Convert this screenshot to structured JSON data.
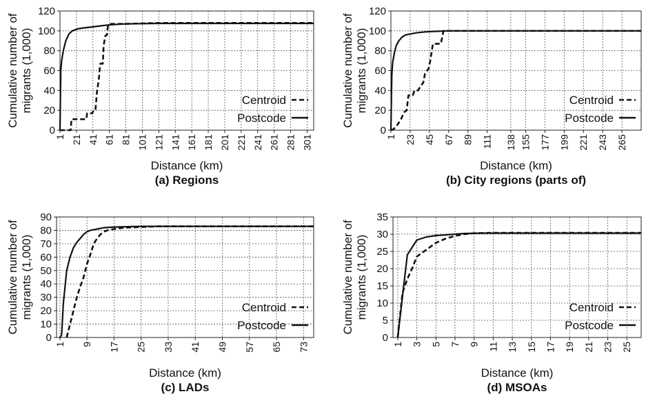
{
  "chart_data": [
    {
      "type": "line",
      "caption": "(a) Regions",
      "xlabel": "Distance (km)",
      "ylabel_lines": [
        "Cumulative number of",
        "migrants (1,000)"
      ],
      "xlim": [
        1,
        309
      ],
      "ylim": [
        0,
        120
      ],
      "y_ticks": [
        0,
        20,
        40,
        60,
        80,
        100,
        120
      ],
      "x_ticks": [
        1,
        21,
        41,
        61,
        81,
        101,
        121,
        141,
        161,
        181,
        201,
        221,
        241,
        261,
        281,
        301
      ],
      "grid": true,
      "legend_position": "bottom-right",
      "series": [
        {
          "name": "Centroid",
          "style": "dashed",
          "points": [
            [
              1,
              0
            ],
            [
              14,
              0
            ],
            [
              15,
              11
            ],
            [
              33,
              11
            ],
            [
              34,
              17
            ],
            [
              40,
              17
            ],
            [
              42,
              20
            ],
            [
              44,
              20
            ],
            [
              46,
              40
            ],
            [
              48,
              50
            ],
            [
              49,
              60
            ],
            [
              50,
              67
            ],
            [
              53,
              67
            ],
            [
              54,
              85
            ],
            [
              56,
              95
            ],
            [
              58,
              96
            ],
            [
              59,
              104
            ],
            [
              61,
              107
            ],
            [
              70,
              107
            ],
            [
              80,
              107
            ],
            [
              120,
              108
            ],
            [
              309,
              108
            ]
          ]
        },
        {
          "name": "Postcode",
          "style": "solid",
          "points": [
            [
              1,
              0
            ],
            [
              2,
              60
            ],
            [
              3,
              70
            ],
            [
              5,
              80
            ],
            [
              8,
              90
            ],
            [
              12,
              97
            ],
            [
              16,
              100
            ],
            [
              22,
              102
            ],
            [
              30,
              103
            ],
            [
              40,
              104
            ],
            [
              50,
              105
            ],
            [
              60,
              106
            ],
            [
              80,
              107
            ],
            [
              120,
              107.5
            ],
            [
              309,
              107.5
            ]
          ]
        }
      ]
    },
    {
      "type": "line",
      "caption": "(b) City regions (parts of)",
      "xlabel": "Distance (km)",
      "ylabel_lines": [
        "Cumulative number of",
        "migrants (1,000)"
      ],
      "xlim": [
        1,
        287
      ],
      "ylim": [
        0,
        120
      ],
      "y_ticks": [
        0,
        20,
        40,
        60,
        80,
        100,
        120
      ],
      "x_ticks": [
        1,
        23,
        45,
        67,
        89,
        111,
        138,
        155,
        177,
        199,
        221,
        243,
        265
      ],
      "grid": true,
      "legend_position": "bottom-right",
      "series": [
        {
          "name": "Centroid",
          "style": "dashed",
          "points": [
            [
              1,
              0
            ],
            [
              4,
              1
            ],
            [
              8,
              5
            ],
            [
              12,
              10
            ],
            [
              16,
              18
            ],
            [
              19,
              20
            ],
            [
              21,
              35
            ],
            [
              26,
              35
            ],
            [
              28,
              40
            ],
            [
              32,
              40
            ],
            [
              34,
              43
            ],
            [
              38,
              48
            ],
            [
              40,
              57
            ],
            [
              44,
              62
            ],
            [
              46,
              70
            ],
            [
              49,
              87
            ],
            [
              52,
              87
            ],
            [
              58,
              87
            ],
            [
              60,
              95
            ],
            [
              61,
              100
            ],
            [
              287,
              100
            ]
          ]
        },
        {
          "name": "Postcode",
          "style": "solid",
          "points": [
            [
              1,
              0
            ],
            [
              2,
              55
            ],
            [
              3,
              68
            ],
            [
              5,
              78
            ],
            [
              7,
              85
            ],
            [
              10,
              90
            ],
            [
              14,
              94
            ],
            [
              18,
              96
            ],
            [
              24,
              97
            ],
            [
              30,
              98
            ],
            [
              40,
              99
            ],
            [
              50,
              99.5
            ],
            [
              67,
              100
            ],
            [
              287,
              100
            ]
          ]
        }
      ]
    },
    {
      "type": "line",
      "caption": "(c) LADs",
      "xlabel": "Distance (km)",
      "ylabel_lines": [
        "Cumulative number of",
        "migrants (1,000)"
      ],
      "xlim": [
        0,
        76
      ],
      "ylim": [
        0,
        90
      ],
      "y_ticks": [
        0,
        10,
        20,
        30,
        40,
        50,
        60,
        70,
        80,
        90
      ],
      "x_ticks": [
        1,
        9,
        17,
        25,
        33,
        41,
        49,
        57,
        65,
        73
      ],
      "grid": true,
      "legend_position": "bottom-right",
      "series": [
        {
          "name": "Centroid",
          "style": "dashed",
          "points": [
            [
              3,
              0
            ],
            [
              4,
              10
            ],
            [
              5,
              20
            ],
            [
              6,
              30
            ],
            [
              7,
              38
            ],
            [
              8,
              45
            ],
            [
              9,
              55
            ],
            [
              10,
              62
            ],
            [
              11,
              70
            ],
            [
              12,
              74
            ],
            [
              13,
              77
            ],
            [
              14,
              79
            ],
            [
              15,
              80
            ],
            [
              17,
              81
            ],
            [
              20,
              82
            ],
            [
              25,
              82.5
            ],
            [
              30,
              83
            ],
            [
              76,
              83
            ]
          ]
        },
        {
          "name": "Postcode",
          "style": "solid",
          "points": [
            [
              1,
              0
            ],
            [
              1.5,
              2
            ],
            [
              2,
              25
            ],
            [
              3,
              50
            ],
            [
              4,
              60
            ],
            [
              5,
              67
            ],
            [
              6,
              71
            ],
            [
              7,
              74
            ],
            [
              8,
              77
            ],
            [
              9,
              79
            ],
            [
              10,
              80
            ],
            [
              12,
              81
            ],
            [
              14,
              82
            ],
            [
              17,
              82.5
            ],
            [
              25,
              83
            ],
            [
              76,
              83
            ]
          ]
        }
      ]
    },
    {
      "type": "line",
      "caption": "(d) MSOAs",
      "xlabel": "Distance (km)",
      "ylabel_lines": [
        "Cumulative number of",
        "migrants (1,000)"
      ],
      "xlim": [
        0.5,
        26.5
      ],
      "ylim": [
        0,
        35
      ],
      "y_ticks": [
        0,
        5,
        10,
        15,
        20,
        25,
        30,
        35
      ],
      "x_ticks": [
        1,
        3,
        5,
        7,
        9,
        11,
        13,
        15,
        17,
        19,
        21,
        23,
        25
      ],
      "grid": true,
      "legend_position": "bottom-right",
      "series": [
        {
          "name": "Centroid",
          "style": "dashed",
          "points": [
            [
              1,
              0
            ],
            [
              1.5,
              13
            ],
            [
              2,
              17
            ],
            [
              2.5,
              20
            ],
            [
              3,
              23.5
            ],
            [
              4,
              25.5
            ],
            [
              5,
              27.5
            ],
            [
              6,
              28.7
            ],
            [
              7,
              29.5
            ],
            [
              8,
              30
            ],
            [
              9,
              30.3
            ],
            [
              11,
              30.4
            ],
            [
              26.5,
              30.4
            ]
          ]
        },
        {
          "name": "Postcode",
          "style": "solid",
          "points": [
            [
              1,
              0
            ],
            [
              2,
              24
            ],
            [
              3,
              28.3
            ],
            [
              4,
              29.2
            ],
            [
              5,
              29.6
            ],
            [
              6,
              29.8
            ],
            [
              7,
              30
            ],
            [
              8,
              30.2
            ],
            [
              10,
              30.3
            ],
            [
              26.5,
              30.3
            ]
          ]
        }
      ]
    }
  ]
}
